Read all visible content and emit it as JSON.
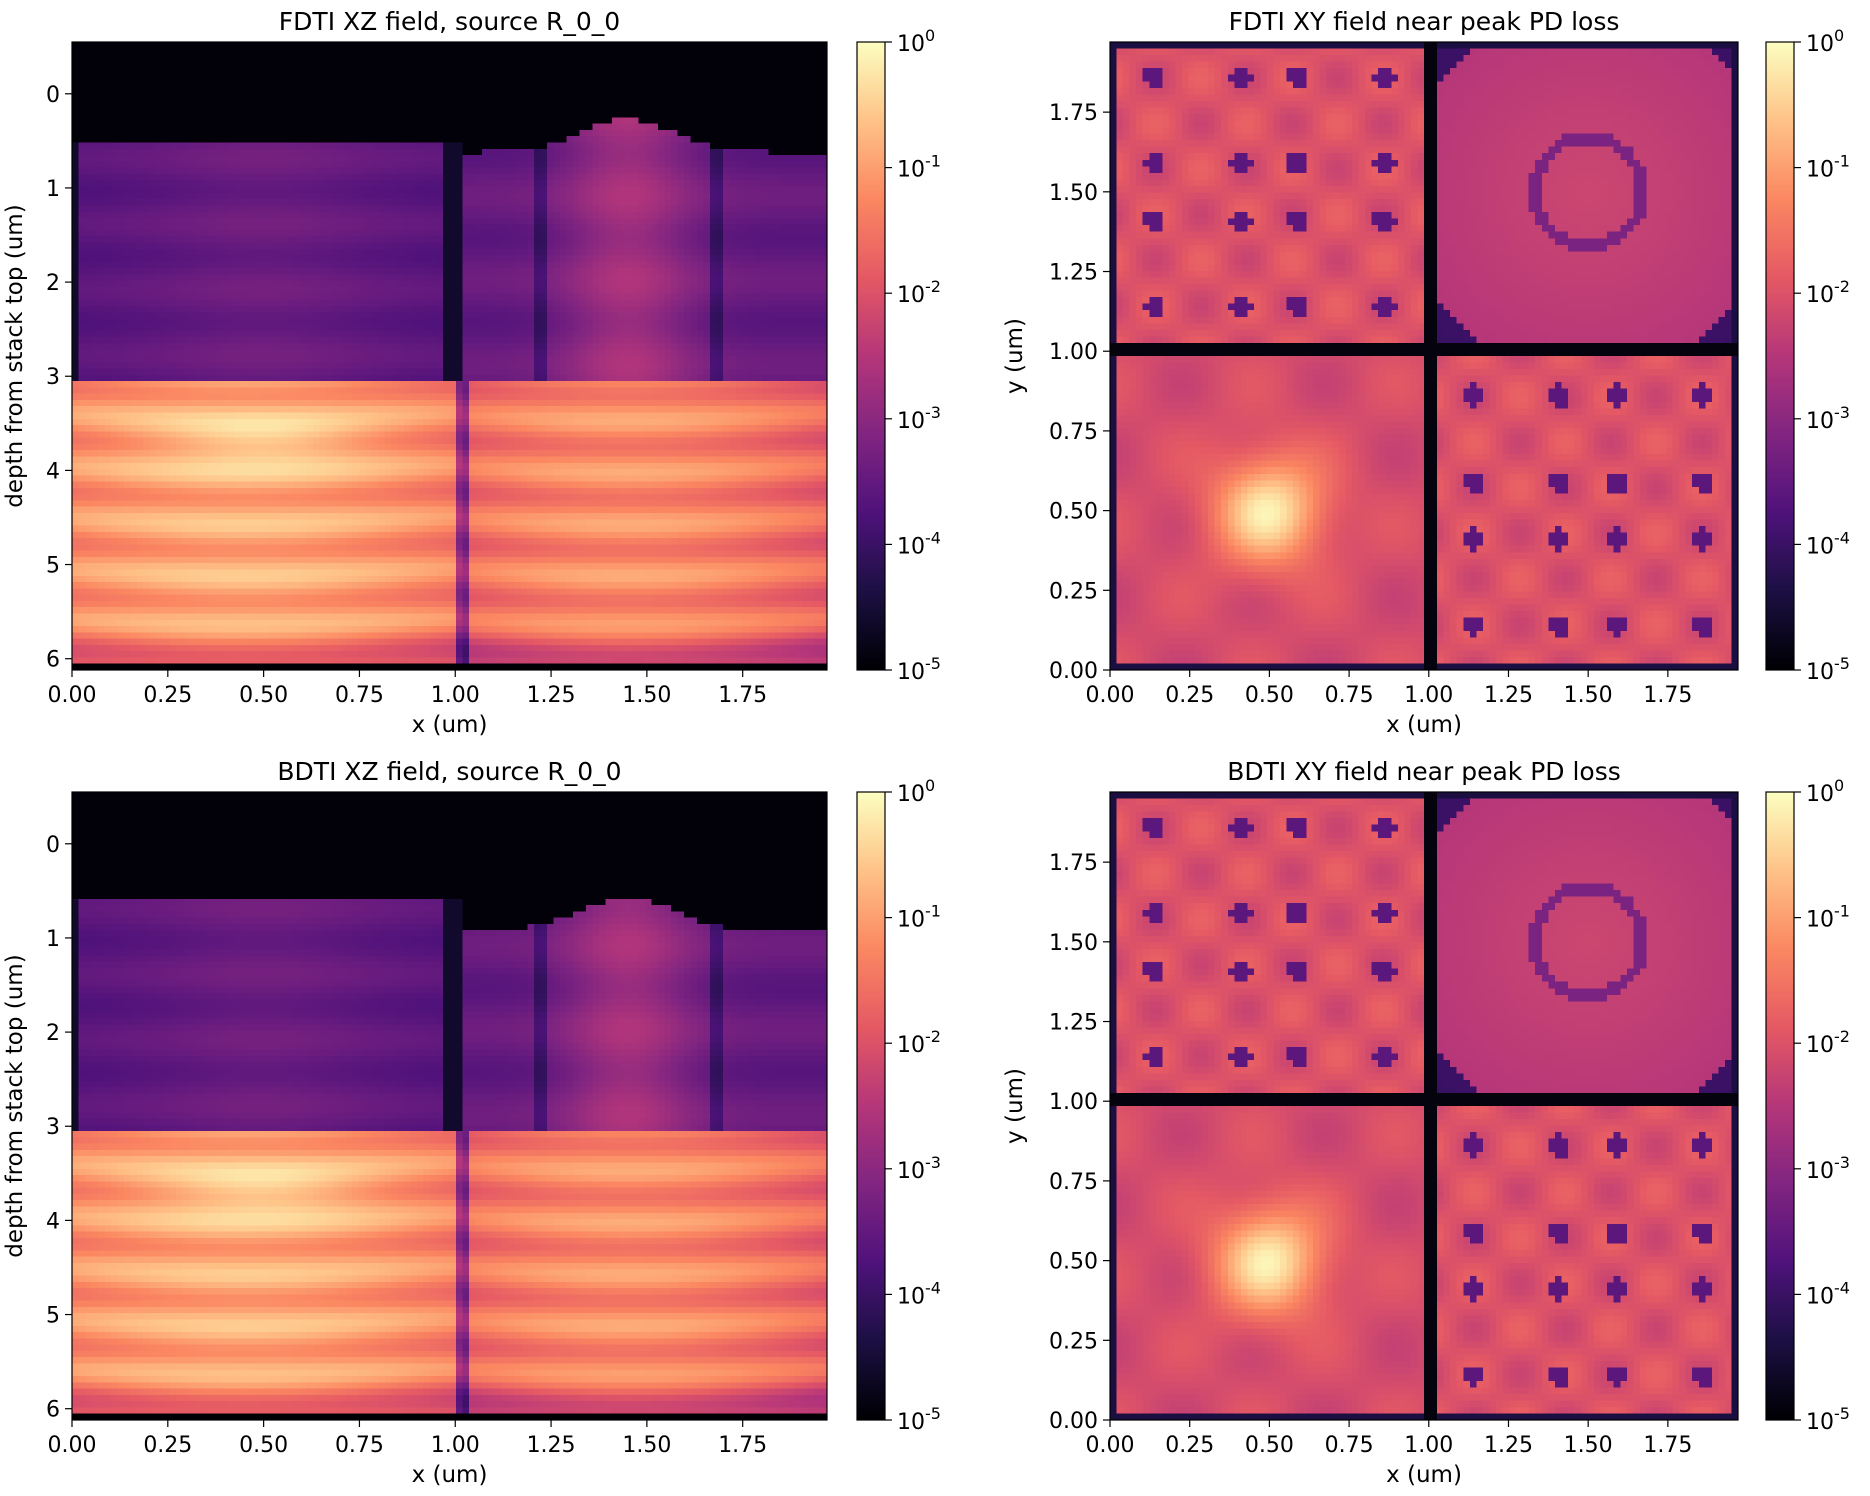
{
  "colormap": {
    "name": "magma",
    "stops": [
      "#000004",
      "#1c1044",
      "#4f127b",
      "#812581",
      "#b5367a",
      "#e55964",
      "#fb8761",
      "#fec287",
      "#fcfdbf"
    ]
  },
  "chart_data": [
    {
      "id": "fdti-xz",
      "type": "heatmap",
      "title": "FDTI XZ field, source R_0_0",
      "xlabel": "x (um)",
      "ylabel": "depth from stack top (um)",
      "xlim": [
        0,
        1.97
      ],
      "ylim": [
        6.12,
        -0.55
      ],
      "x_ticks": [
        "0.00",
        "0.25",
        "0.50",
        "0.75",
        "1.00",
        "1.25",
        "1.50",
        "1.75"
      ],
      "y_ticks": [
        "0",
        "1",
        "2",
        "3",
        "4",
        "5",
        "6"
      ],
      "color_scale": "log",
      "clim": [
        1e-05,
        1
      ],
      "colorbar_ticks": [
        "10^0",
        "10^-1",
        "10^-2",
        "10^-3",
        "10^-4",
        "10^-5"
      ],
      "left_dark_depth": 5.05,
      "right_dark_depth": 5.3
    },
    {
      "id": "fdti-xy",
      "type": "heatmap",
      "title": "FDTI XY field near peak PD loss",
      "xlabel": "x (um)",
      "ylabel": "y (um)",
      "xlim": [
        0,
        1.97
      ],
      "ylim": [
        0,
        1.97
      ],
      "x_ticks": [
        "0.00",
        "0.25",
        "0.50",
        "0.75",
        "1.00",
        "1.25",
        "1.50",
        "1.75"
      ],
      "y_ticks": [
        "0.00",
        "0.25",
        "0.50",
        "0.75",
        "1.00",
        "1.25",
        "1.50",
        "1.75"
      ],
      "color_scale": "log",
      "clim": [
        1e-05,
        1
      ],
      "colorbar_ticks": [
        "10^0",
        "10^-1",
        "10^-2",
        "10^-3",
        "10^-4",
        "10^-5"
      ]
    },
    {
      "id": "bdti-xz",
      "type": "heatmap",
      "title": "BDTI XZ field, source R_0_0",
      "xlabel": "x (um)",
      "ylabel": "depth from stack top (um)",
      "xlim": [
        0,
        1.97
      ],
      "ylim": [
        6.12,
        -0.55
      ],
      "x_ticks": [
        "0.00",
        "0.25",
        "0.50",
        "0.75",
        "1.00",
        "1.25",
        "1.50",
        "1.75"
      ],
      "y_ticks": [
        "0",
        "1",
        "2",
        "3",
        "4",
        "5",
        "6"
      ],
      "color_scale": "log",
      "clim": [
        1e-05,
        1
      ],
      "colorbar_ticks": [
        "10^0",
        "10^-1",
        "10^-2",
        "10^-3",
        "10^-4",
        "10^-5"
      ],
      "left_dark_depth": 5.0,
      "right_dark_depth": 5.0
    },
    {
      "id": "bdti-xy",
      "type": "heatmap",
      "title": "BDTI XY field near peak PD loss",
      "xlabel": "x (um)",
      "ylabel": "y (um)",
      "xlim": [
        0,
        1.97
      ],
      "ylim": [
        0,
        1.97
      ],
      "x_ticks": [
        "0.00",
        "0.25",
        "0.50",
        "0.75",
        "1.00",
        "1.25",
        "1.50",
        "1.75"
      ],
      "y_ticks": [
        "0.00",
        "0.25",
        "0.50",
        "0.75",
        "1.00",
        "1.25",
        "1.50",
        "1.75"
      ],
      "color_scale": "log",
      "clim": [
        1e-05,
        1
      ],
      "colorbar_ticks": [
        "10^0",
        "10^-1",
        "10^-2",
        "10^-3",
        "10^-4",
        "10^-5"
      ]
    }
  ]
}
